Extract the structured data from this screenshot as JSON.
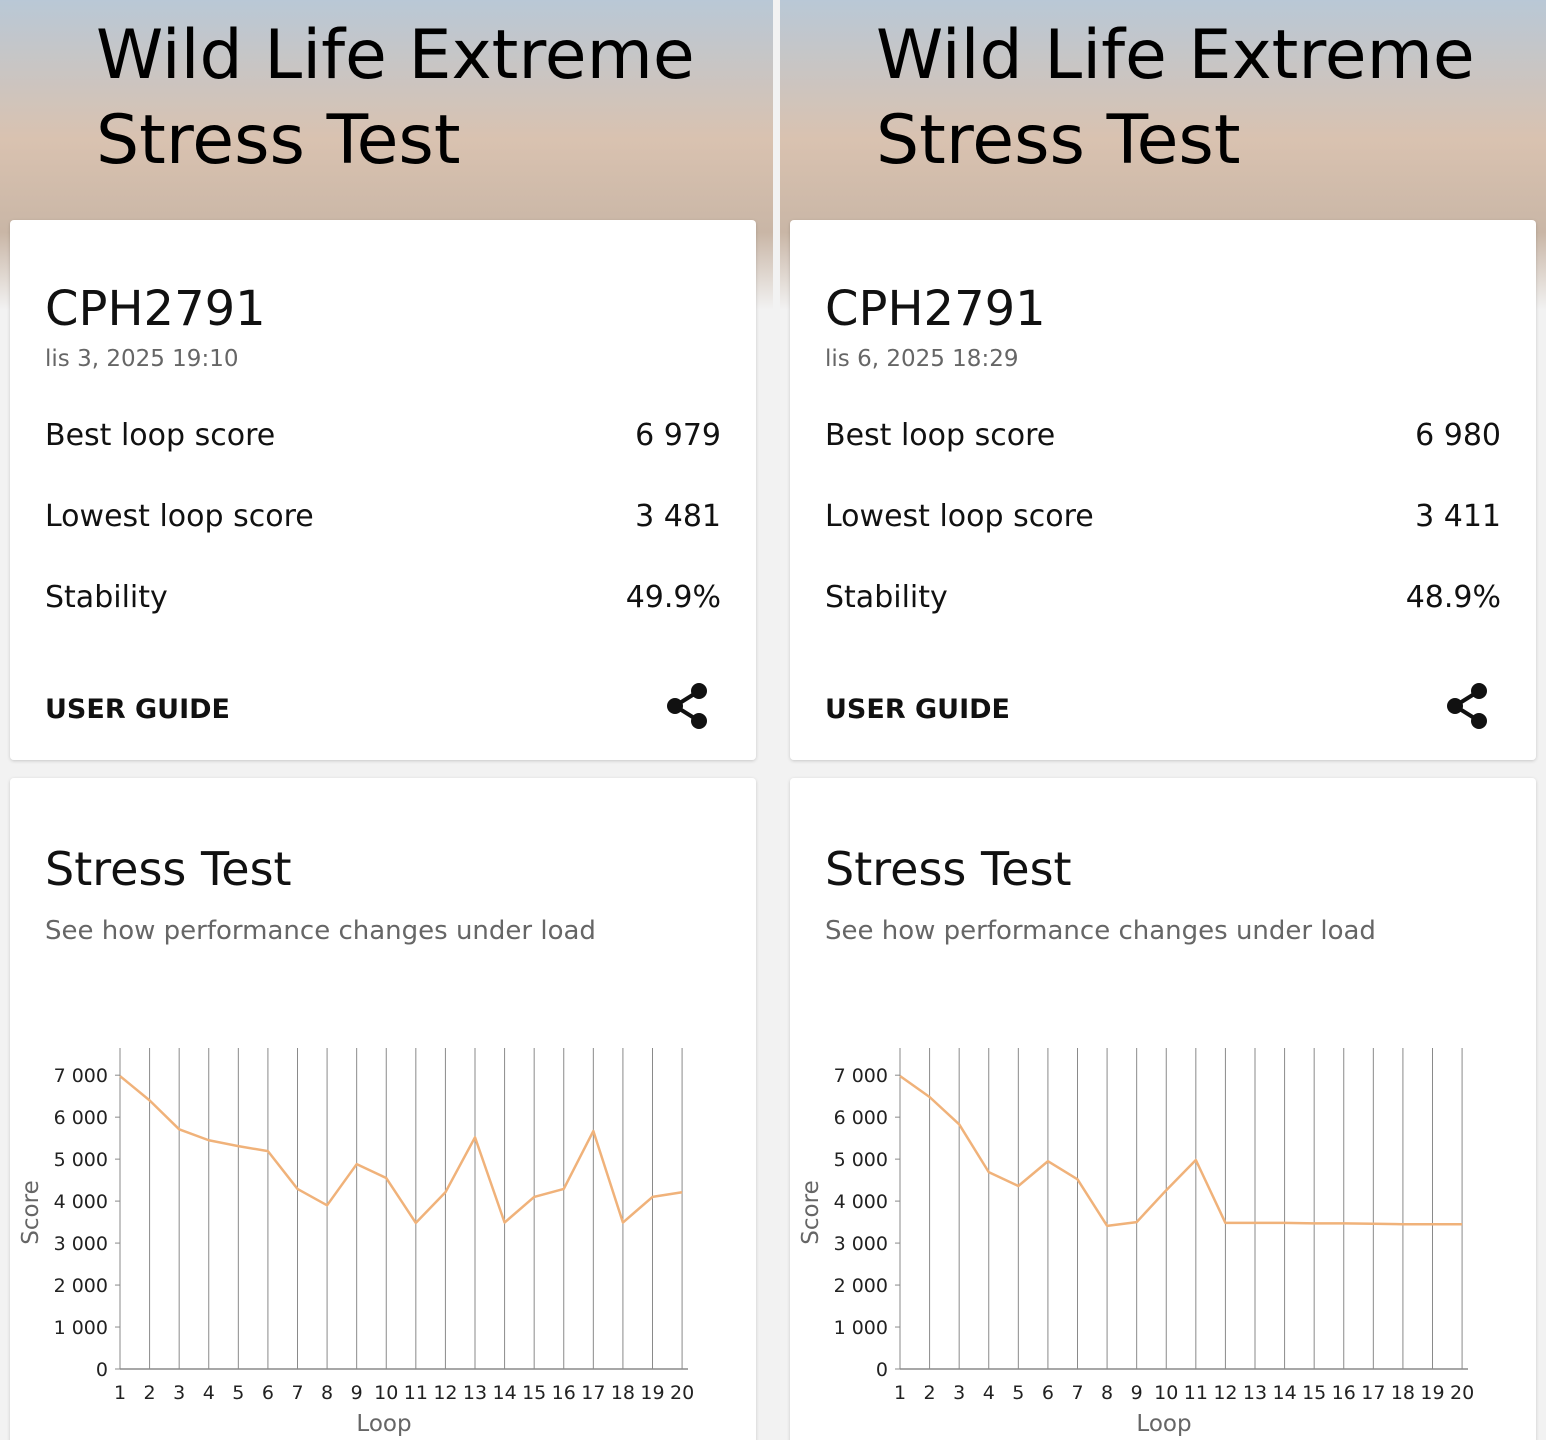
{
  "panels": [
    {
      "header": {
        "title_lines": [
          "Wild Life Extreme",
          "Stress Test"
        ]
      },
      "card": {
        "device": "CPH2791",
        "date": "lis 3, 2025 19:10",
        "rows": [
          {
            "label": "Best loop score",
            "value": "6 979"
          },
          {
            "label": "Lowest loop score",
            "value": "3 481"
          },
          {
            "label": "Stability",
            "value": "49.9%"
          }
        ],
        "link": "USER GUIDE"
      },
      "stress": {
        "title": "Stress Test",
        "subtitle": "See how performance changes under load"
      }
    },
    {
      "header": {
        "title_lines": [
          "Wild Life Extreme",
          "Stress Test"
        ]
      },
      "card": {
        "device": "CPH2791",
        "date": "lis 6, 2025 18:29",
        "rows": [
          {
            "label": "Best loop score",
            "value": "6 980"
          },
          {
            "label": "Lowest loop score",
            "value": "3 411"
          },
          {
            "label": "Stability",
            "value": "48.9%"
          }
        ],
        "link": "USER GUIDE"
      },
      "stress": {
        "title": "Stress Test",
        "subtitle": "See how performance changes under load"
      }
    }
  ],
  "chart_data": [
    {
      "type": "line",
      "x_label": "Loop",
      "y_label": "Score",
      "x": [
        1,
        2,
        3,
        4,
        5,
        6,
        7,
        8,
        9,
        10,
        11,
        12,
        13,
        14,
        15,
        16,
        17,
        18,
        19,
        20
      ],
      "series": [
        {
          "color": "#f0b27a",
          "values": [
            6979,
            6400,
            5710,
            5450,
            5310,
            5190,
            4290,
            3900,
            4880,
            4550,
            3481,
            4210,
            5520,
            3490,
            4100,
            4290,
            5670,
            3490,
            4100,
            4210
          ]
        }
      ],
      "xlim": [
        1,
        20.2
      ],
      "ylim": [
        0,
        7600
      ],
      "xticks": [
        1,
        2,
        3,
        4,
        5,
        6,
        7,
        8,
        9,
        10,
        11,
        12,
        13,
        14,
        15,
        16,
        17,
        18,
        19,
        20
      ],
      "yticks": [
        0,
        {
          "value": 1000,
          "label": "1 000"
        },
        {
          "value": 2000,
          "label": "2 000"
        },
        {
          "value": 3000,
          "label": "3 000"
        },
        {
          "value": 4000,
          "label": "4 000"
        },
        {
          "value": 5000,
          "label": "5 000"
        },
        {
          "value": 6000,
          "label": "6 000"
        },
        {
          "value": 7000,
          "label": "7 000"
        }
      ],
      "grid": true
    },
    {
      "type": "line",
      "x_label": "Loop",
      "y_label": "Score",
      "x": [
        1,
        2,
        3,
        4,
        5,
        6,
        7,
        8,
        9,
        10,
        11,
        12,
        13,
        14,
        15,
        16,
        17,
        18,
        19,
        20
      ],
      "series": [
        {
          "color": "#f0b27a",
          "values": [
            6980,
            6480,
            5830,
            4690,
            4360,
            4950,
            4520,
            3411,
            3500,
            4260,
            4980,
            3480,
            3480,
            3480,
            3470,
            3470,
            3460,
            3450,
            3450,
            3450
          ]
        }
      ],
      "xlim": [
        1,
        20.2
      ],
      "ylim": [
        0,
        7600
      ],
      "xticks": [
        1,
        2,
        3,
        4,
        5,
        6,
        7,
        8,
        9,
        10,
        11,
        12,
        13,
        14,
        15,
        16,
        17,
        18,
        19,
        20
      ],
      "yticks": [
        0,
        {
          "value": 1000,
          "label": "1 000"
        },
        {
          "value": 2000,
          "label": "2 000"
        },
        {
          "value": 3000,
          "label": "3 000"
        },
        {
          "value": 4000,
          "label": "4 000"
        },
        {
          "value": 5000,
          "label": "5 000"
        },
        {
          "value": 6000,
          "label": "6 000"
        },
        {
          "value": 7000,
          "label": "7 000"
        }
      ],
      "grid": true
    }
  ]
}
